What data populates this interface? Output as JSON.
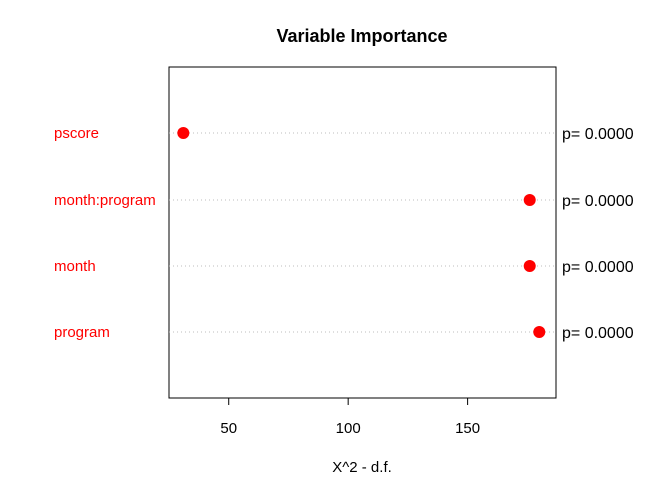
{
  "chart_data": {
    "type": "scatter",
    "title": "Variable Importance",
    "xlabel": "X^2 - d.f.",
    "ylabel": "",
    "xlim": [
      25,
      187
    ],
    "x_ticks": [
      "50",
      "100",
      "150"
    ],
    "x_tick_values": [
      50,
      100,
      150
    ],
    "grid": "dotted horizontal guide lines per category",
    "point_color": "#ff0000",
    "label_color": "#ff0000",
    "guide_color": "#bebebe",
    "categories": [
      "pscore",
      "month:program",
      "month",
      "program"
    ],
    "values": [
      31,
      176,
      176,
      180
    ],
    "pvalues": [
      "p= 0.0000",
      "p= 0.0000",
      "p= 0.0000",
      "p= 0.0000"
    ]
  }
}
